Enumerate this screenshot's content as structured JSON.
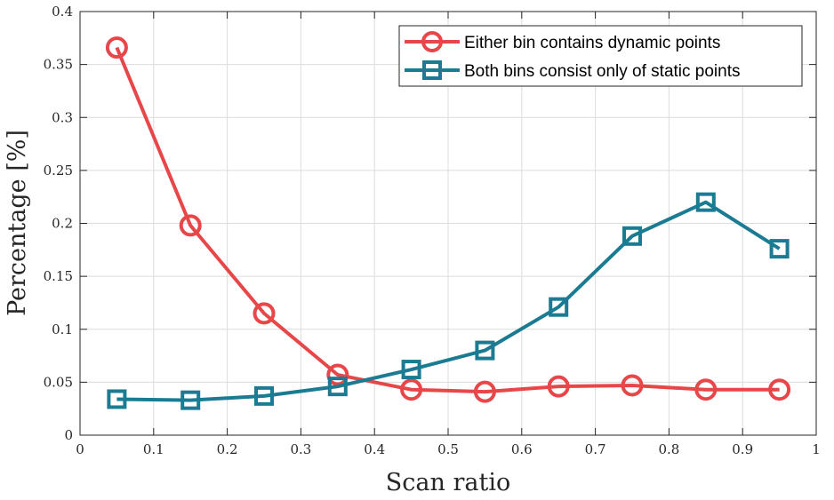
{
  "chart_data": {
    "type": "line",
    "title": "",
    "xlabel": "Scan ratio",
    "ylabel": "Percentage [%]",
    "xlim": [
      0,
      1
    ],
    "ylim": [
      0,
      0.4
    ],
    "xticks": [
      0,
      0.1,
      0.2,
      0.3,
      0.4,
      0.5,
      0.6,
      0.7,
      0.8,
      0.9,
      1
    ],
    "xtick_labels": [
      "0",
      "0.1",
      "0.2",
      "0.3",
      "0.4",
      "0.5",
      "0.6",
      "0.7",
      "0.8",
      "0.9",
      "1"
    ],
    "yticks": [
      0,
      0.05,
      0.1,
      0.15,
      0.2,
      0.25,
      0.3,
      0.35,
      0.4
    ],
    "ytick_labels": [
      "0",
      "0.05",
      "0.1",
      "0.15",
      "0.2",
      "0.25",
      "0.3",
      "0.35",
      "0.4"
    ],
    "grid": true,
    "legend_position": "top-right",
    "x": [
      0.05,
      0.15,
      0.25,
      0.35,
      0.45,
      0.55,
      0.65,
      0.75,
      0.85,
      0.95
    ],
    "series": [
      {
        "name": "Either bin contains dynamic points",
        "marker": "circle",
        "color": "#e8474a",
        "values": [
          0.366,
          0.198,
          0.115,
          0.057,
          0.043,
          0.041,
          0.046,
          0.047,
          0.043,
          0.043
        ]
      },
      {
        "name": "Both bins consist only of static points",
        "marker": "square",
        "color": "#1a7b92",
        "values": [
          0.034,
          0.033,
          0.037,
          0.046,
          0.062,
          0.08,
          0.121,
          0.188,
          0.22,
          0.176
        ]
      }
    ]
  }
}
